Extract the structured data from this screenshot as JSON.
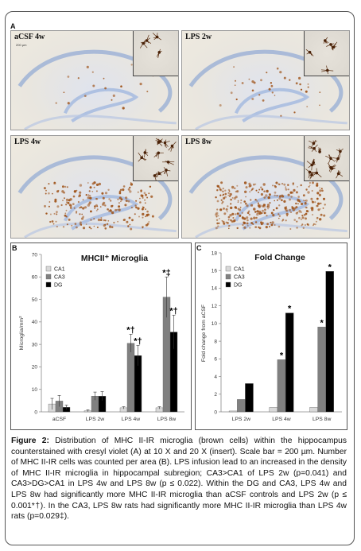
{
  "figure": {
    "panel_a_letter": "A",
    "panel_b_letter": "B",
    "panel_c_letter": "C",
    "micrographs": [
      {
        "label": "aCSF 4w",
        "scale_text": "200 µm",
        "density": 0.03
      },
      {
        "label": "LPS 2w",
        "scale_text": "",
        "density": 0.08
      },
      {
        "label": "LPS 4w",
        "scale_text": "",
        "density": 0.55
      },
      {
        "label": "LPS 8w",
        "scale_text": "",
        "density": 0.85
      }
    ]
  },
  "chart_data": [
    {
      "type": "bar",
      "title": "MHCII⁺ Microglia",
      "ylabel": "Microglia/mm²",
      "xlabel": "",
      "ylim": [
        0,
        70
      ],
      "yticks": [
        0,
        10,
        20,
        30,
        40,
        50,
        60,
        70
      ],
      "categories": [
        "aCSF",
        "LPS 2w",
        "LPS 4w",
        "LPS 8w"
      ],
      "legend_position": "top-left",
      "grid": false,
      "series": [
        {
          "name": "CA1",
          "color": "#d9d9d9",
          "values": [
            3.5,
            0.5,
            1.8,
            1.8
          ],
          "errors": [
            2.5,
            0.4,
            0.5,
            0.5
          ]
        },
        {
          "name": "CA3",
          "color": "#808080",
          "values": [
            4.8,
            7.0,
            30.5,
            51.0
          ],
          "errors": [
            2.5,
            1.8,
            4.0,
            9.0
          ]
        },
        {
          "name": "DG",
          "color": "#000000",
          "values": [
            2.0,
            7.0,
            25.0,
            35.5
          ],
          "errors": [
            1.0,
            2.0,
            4.5,
            7.5
          ]
        }
      ],
      "annotations": [
        {
          "category": "LPS 4w",
          "series": "CA3",
          "text": "*†"
        },
        {
          "category": "LPS 4w",
          "series": "DG",
          "text": "*†"
        },
        {
          "category": "LPS 8w",
          "series": "CA3",
          "text": "*‡"
        },
        {
          "category": "LPS 8w",
          "series": "DG",
          "text": "*†"
        }
      ]
    },
    {
      "type": "bar",
      "title": "Fold Change",
      "ylabel": "Fold change from aCSF",
      "xlabel": "",
      "ylim": [
        0,
        18
      ],
      "yticks": [
        0,
        2,
        4,
        6,
        8,
        10,
        12,
        14,
        16,
        18
      ],
      "categories": [
        "LPS 2w",
        "LPS 4w",
        "LPS 8w"
      ],
      "legend_position": "top-left",
      "grid": false,
      "series": [
        {
          "name": "CA1",
          "color": "#d9d9d9",
          "values": [
            0.1,
            0.5,
            0.5
          ]
        },
        {
          "name": "CA3",
          "color": "#808080",
          "values": [
            1.4,
            5.9,
            9.6
          ]
        },
        {
          "name": "DG",
          "color": "#000000",
          "values": [
            3.2,
            11.2,
            15.9
          ]
        }
      ],
      "annotations": [
        {
          "category": "LPS 4w",
          "series": "CA3",
          "text": "*"
        },
        {
          "category": "LPS 4w",
          "series": "DG",
          "text": "*"
        },
        {
          "category": "LPS 8w",
          "series": "CA3",
          "text": "*"
        },
        {
          "category": "LPS 8w",
          "series": "DG",
          "text": "*"
        }
      ]
    }
  ],
  "caption": {
    "label": "Figure 2:",
    "text": "Distribution of MHC II-IR microglia (brown cells) within the hippocampus counterstained with cresyl violet (A) at 10 X and 20 X (insert). Scale bar = 200 µm. Number of MHC II-IR cells was counted per area (B). LPS infusion lead to an increased in the density of MHC II-IR microglia in hippocampal subregion; CA3>CA1 of LPS 2w (p=0.041) and CA3>DG>CA1 in LPS 4w and LPS 8w (p ≤ 0.022). Within the DG and CA3, LPS 4w and LPS 8w had significantly more MHC II-IR microglia than aCSF controls and LPS 2w (p ≤ 0.001*†). In the CA3, LPS 8w rats had significantly more MHC II-IR microglia than LPS 4w rats (p=0.029‡)."
  }
}
